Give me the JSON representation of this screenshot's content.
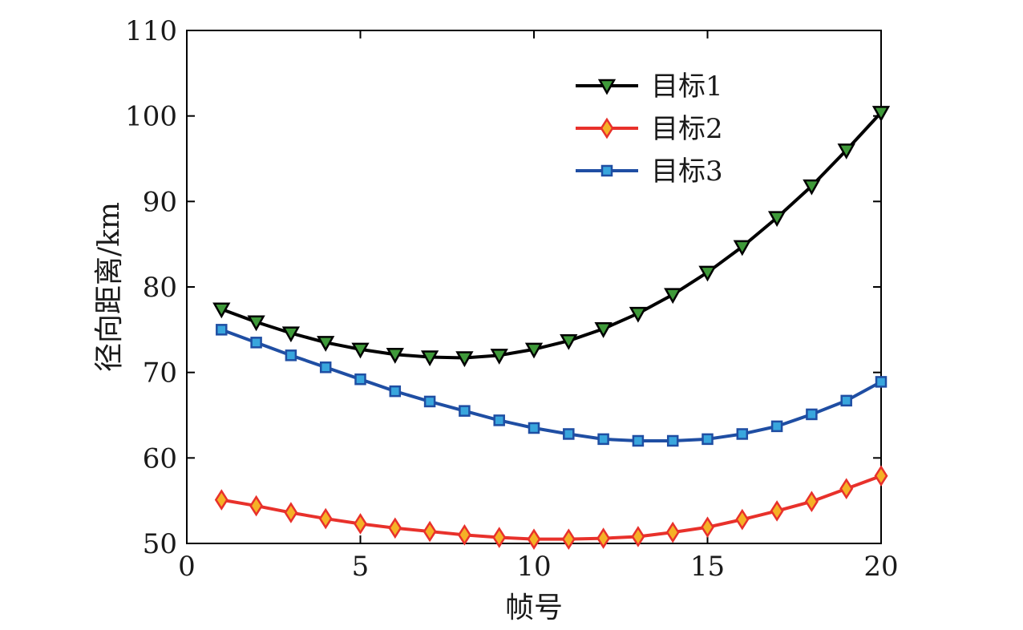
{
  "chart_data": {
    "type": "line",
    "xlabel": "帧号",
    "ylabel": "径向距离/km",
    "xlim": [
      0,
      20
    ],
    "ylim": [
      50,
      110
    ],
    "xticks": [
      0,
      5,
      10,
      15,
      20
    ],
    "yticks": [
      50,
      60,
      70,
      80,
      90,
      100,
      110
    ],
    "grid": false,
    "legend_position": "top-right",
    "x": [
      1,
      2,
      3,
      4,
      5,
      6,
      7,
      8,
      9,
      10,
      11,
      12,
      13,
      14,
      15,
      16,
      17,
      18,
      19,
      20
    ],
    "series": [
      {
        "name": "目标1",
        "line_color": "#000000",
        "marker": "triangle-down",
        "marker_fill": "#3f9a3a",
        "values": [
          77.4,
          75.9,
          74.6,
          73.5,
          72.7,
          72.1,
          71.8,
          71.7,
          72.0,
          72.7,
          73.7,
          75.1,
          76.9,
          79.1,
          81.7,
          84.7,
          88.1,
          91.8,
          96.0,
          100.4
        ]
      },
      {
        "name": "目标2",
        "line_color": "#e8312b",
        "marker": "diamond",
        "marker_fill": "#f5b126",
        "values": [
          55.1,
          54.4,
          53.6,
          52.9,
          52.3,
          51.8,
          51.4,
          51.0,
          50.7,
          50.5,
          50.5,
          50.6,
          50.8,
          51.3,
          51.9,
          52.8,
          53.8,
          54.9,
          56.4,
          57.9
        ]
      },
      {
        "name": "目标3",
        "line_color": "#1f4ea3",
        "marker": "square",
        "marker_fill": "#39a6dd",
        "values": [
          75.0,
          73.5,
          72.0,
          70.6,
          69.2,
          67.8,
          66.6,
          65.5,
          64.4,
          63.5,
          62.8,
          62.2,
          62.0,
          62.0,
          62.2,
          62.8,
          63.7,
          65.1,
          66.7,
          68.9
        ]
      }
    ]
  }
}
